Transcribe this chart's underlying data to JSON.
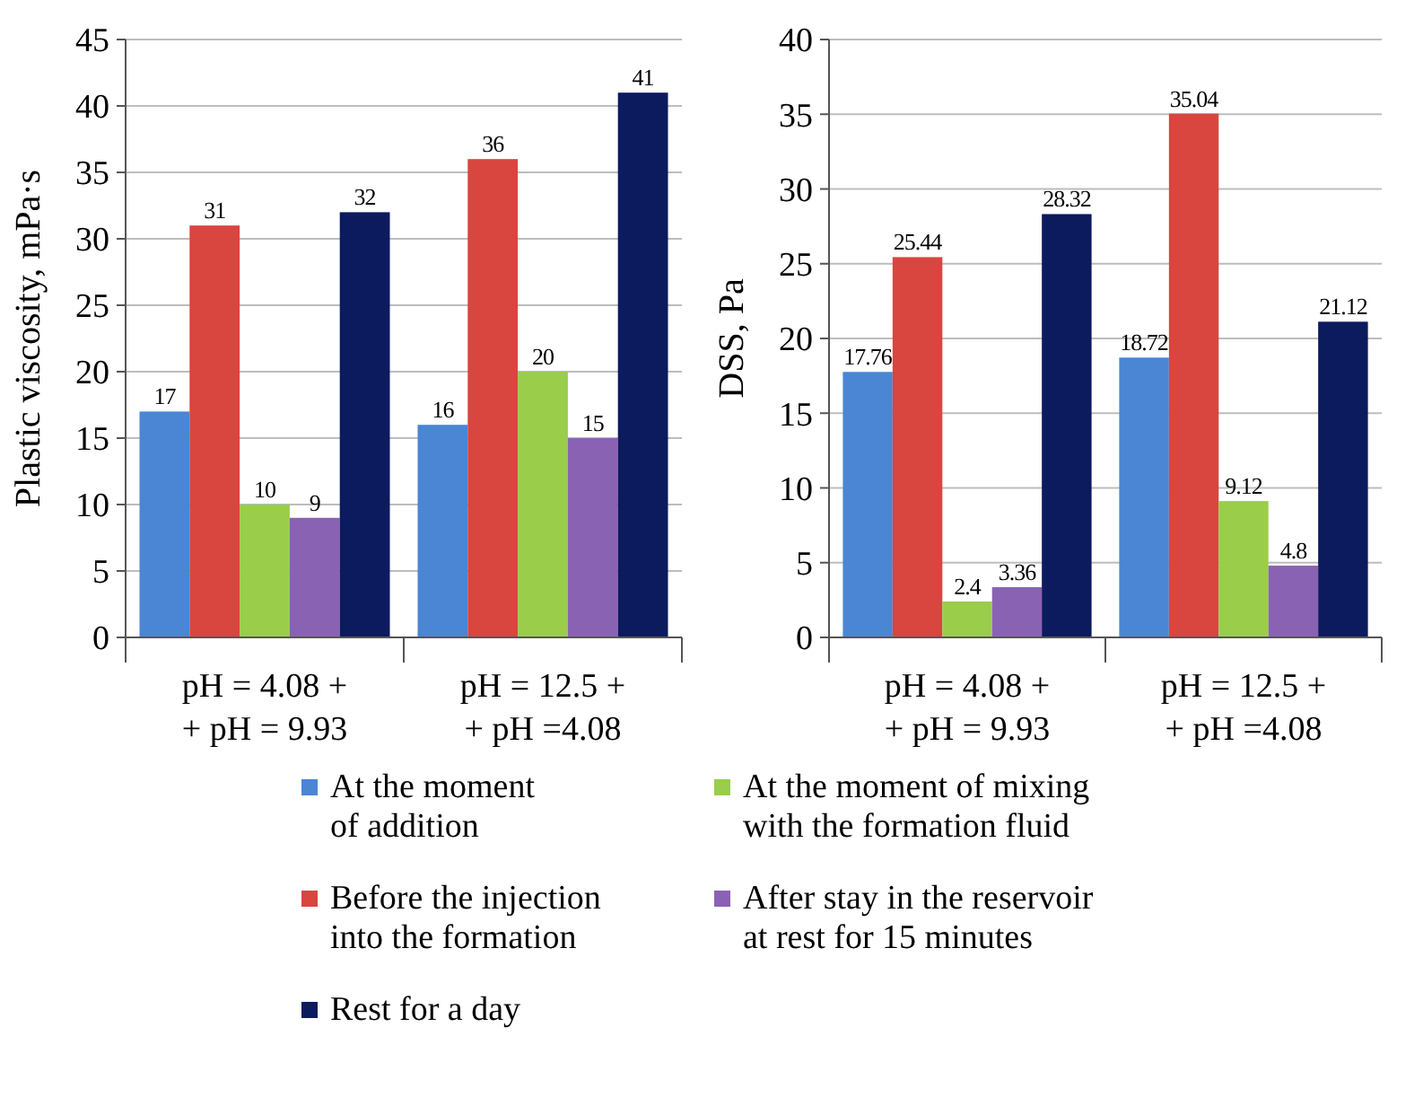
{
  "chart_data": [
    {
      "type": "bar",
      "ylabel": "Plastic viscosity, mPa·s",
      "categories": [
        "pH = 4.08 +\n+ pH = 9.93",
        "pH = 12.5 +\n+ pH =4.08"
      ],
      "ylim": [
        0,
        45
      ],
      "yticks": [
        0,
        5,
        10,
        15,
        20,
        25,
        30,
        35,
        40,
        45
      ],
      "grid": "y",
      "data_labels": true,
      "legend": "bottom",
      "series": [
        {
          "name": "At the moment\nof addition",
          "color": "#4a86d4",
          "values": [
            17,
            16
          ]
        },
        {
          "name": "Before the injection\ninto the formation",
          "color": "#d9453f",
          "values": [
            31,
            36
          ]
        },
        {
          "name": "At the moment of mixing\nwith the formation fluid",
          "color": "#9acd4a",
          "values": [
            10,
            20
          ]
        },
        {
          "name": "After stay in the reservoir\nat rest for 15 minutes",
          "color": "#8a62b4",
          "values": [
            9,
            15
          ]
        },
        {
          "name": "Rest for a day",
          "color": "#0c1a5e",
          "values": [
            32,
            41
          ]
        }
      ]
    },
    {
      "type": "bar",
      "ylabel": "DSS, Pa",
      "categories": [
        "pH = 4.08 +\n+ pH = 9.93",
        "pH = 12.5 +\n+ pH =4.08"
      ],
      "ylim": [
        0,
        40
      ],
      "yticks": [
        0,
        5,
        10,
        15,
        20,
        25,
        30,
        35,
        40
      ],
      "grid": "y",
      "data_labels": true,
      "series": [
        {
          "color": "#4a86d4",
          "values": [
            17.76,
            18.72
          ]
        },
        {
          "color": "#d9453f",
          "values": [
            25.44,
            35.04
          ]
        },
        {
          "color": "#9acd4a",
          "values": [
            2.4,
            9.12
          ]
        },
        {
          "color": "#8a62b4",
          "values": [
            3.36,
            4.8
          ]
        },
        {
          "color": "#0c1a5e",
          "values": [
            28.32,
            21.12
          ]
        }
      ]
    }
  ]
}
